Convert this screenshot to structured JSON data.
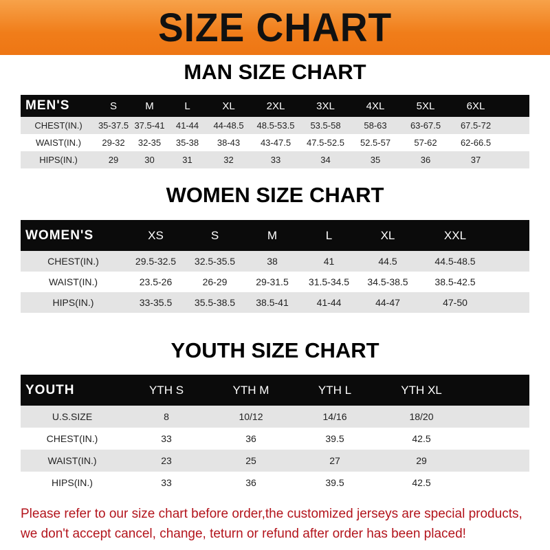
{
  "banner": {
    "title": "SIZE CHART"
  },
  "colors": {
    "banner": "#f07d1a",
    "header": "#0b0b0b",
    "stripe": "#e4e4e4",
    "note": "#b3141c"
  },
  "men": {
    "title": "MAN SIZE CHART",
    "header": [
      "MEN'S",
      "S",
      "M",
      "L",
      "XL",
      "2XL",
      "3XL",
      "4XL",
      "5XL",
      "6XL"
    ],
    "rows": [
      [
        "CHEST(IN.)",
        "35-37.5",
        "37.5-41",
        "41-44",
        "44-48.5",
        "48.5-53.5",
        "53.5-58",
        "58-63",
        "63-67.5",
        "67.5-72"
      ],
      [
        "WAIST(IN.)",
        "29-32",
        "32-35",
        "35-38",
        "38-43",
        "43-47.5",
        "47.5-52.5",
        "52.5-57",
        "57-62",
        "62-66.5"
      ],
      [
        "HIPS(IN.)",
        "29",
        "30",
        "31",
        "32",
        "33",
        "34",
        "35",
        "36",
        "37"
      ]
    ]
  },
  "women": {
    "title": "WOMEN SIZE CHART",
    "header": [
      "WOMEN'S",
      "XS",
      "S",
      "M",
      "L",
      "XL",
      "XXL"
    ],
    "rows": [
      [
        "CHEST(IN.)",
        "29.5-32.5",
        "32.5-35.5",
        "38",
        "41",
        "44.5",
        "44.5-48.5"
      ],
      [
        "WAIST(IN.)",
        "23.5-26",
        "26-29",
        "29-31.5",
        "31.5-34.5",
        "34.5-38.5",
        "38.5-42.5"
      ],
      [
        "HIPS(IN.)",
        "33-35.5",
        "35.5-38.5",
        "38.5-41",
        "41-44",
        "44-47",
        "47-50"
      ]
    ]
  },
  "youth": {
    "title": "YOUTH SIZE CHART",
    "header": [
      "YOUTH",
      "YTH S",
      "YTH M",
      "YTH L",
      "YTH XL"
    ],
    "rows": [
      [
        "U.S.SIZE",
        "8",
        "10/12",
        "14/16",
        "18/20"
      ],
      [
        "CHEST(IN.)",
        "33",
        "36",
        "39.5",
        "42.5"
      ],
      [
        "WAIST(IN.)",
        "23",
        "25",
        "27",
        "29"
      ],
      [
        "HIPS(IN.)",
        "33",
        "36",
        "39.5",
        "42.5"
      ]
    ]
  },
  "note": {
    "line1": "Please refer to our size chart before order,the customized jerseys are special products,",
    "line2": "we don't accept cancel, change, teturn or refund after order has been placed!"
  }
}
